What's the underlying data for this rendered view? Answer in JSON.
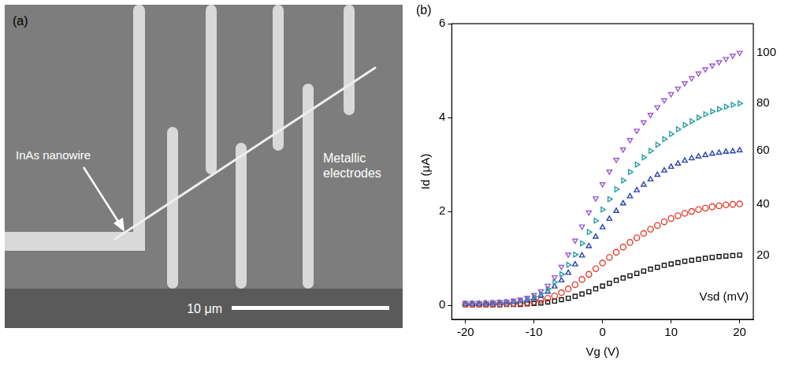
{
  "chart_data": {
    "type": "scatter",
    "panel_label": "(b)",
    "x_label": "Vg (V)",
    "y_label": "Id (μA)",
    "legend_title": "Vsd (mV)",
    "x": [
      -20,
      -19,
      -18,
      -17,
      -16,
      -15,
      -14,
      -13,
      -12,
      -11,
      -10,
      -9,
      -8,
      -7,
      -6,
      -5,
      -4,
      -3,
      -2,
      -1,
      0,
      1,
      2,
      3,
      4,
      5,
      6,
      7,
      8,
      9,
      10,
      11,
      12,
      13,
      14,
      15,
      16,
      17,
      18,
      19,
      20
    ],
    "series": [
      {
        "name": "100",
        "color": "#9a5cd0",
        "marker": "triangle_down",
        "values": [
          0.05,
          0.05,
          0.05,
          0.05,
          0.06,
          0.07,
          0.08,
          0.1,
          0.12,
          0.16,
          0.22,
          0.3,
          0.42,
          0.6,
          0.82,
          1.08,
          1.38,
          1.68,
          1.98,
          2.28,
          2.58,
          2.85,
          3.1,
          3.32,
          3.52,
          3.72,
          3.9,
          4.06,
          4.22,
          4.37,
          4.5,
          4.62,
          4.73,
          4.84,
          4.94,
          5.03,
          5.11,
          5.18,
          5.25,
          5.32,
          5.38
        ]
      },
      {
        "name": "80",
        "color": "#2a9fa3",
        "marker": "triangle_right",
        "values": [
          0.04,
          0.04,
          0.04,
          0.05,
          0.05,
          0.06,
          0.07,
          0.08,
          0.1,
          0.13,
          0.18,
          0.25,
          0.35,
          0.49,
          0.66,
          0.86,
          1.08,
          1.32,
          1.56,
          1.8,
          2.04,
          2.26,
          2.47,
          2.66,
          2.84,
          3.0,
          3.15,
          3.29,
          3.42,
          3.54,
          3.65,
          3.75,
          3.84,
          3.92,
          4.0,
          4.07,
          4.13,
          4.18,
          4.23,
          4.27,
          4.3
        ]
      },
      {
        "name": "60",
        "color": "#2b44b0",
        "marker": "triangle_up",
        "values": [
          0.03,
          0.03,
          0.03,
          0.04,
          0.04,
          0.05,
          0.06,
          0.07,
          0.09,
          0.11,
          0.15,
          0.21,
          0.29,
          0.4,
          0.53,
          0.69,
          0.87,
          1.06,
          1.26,
          1.46,
          1.66,
          1.84,
          2.01,
          2.17,
          2.32,
          2.45,
          2.57,
          2.68,
          2.78,
          2.87,
          2.95,
          3.02,
          3.08,
          3.13,
          3.17,
          3.2,
          3.23,
          3.25,
          3.27,
          3.28,
          3.3
        ]
      },
      {
        "name": "40",
        "color": "#e0402e",
        "marker": "circle",
        "values": [
          0.02,
          0.02,
          0.02,
          0.02,
          0.03,
          0.03,
          0.04,
          0.04,
          0.05,
          0.06,
          0.08,
          0.11,
          0.15,
          0.2,
          0.27,
          0.35,
          0.44,
          0.55,
          0.66,
          0.78,
          0.9,
          1.02,
          1.13,
          1.24,
          1.34,
          1.44,
          1.53,
          1.62,
          1.7,
          1.78,
          1.85,
          1.91,
          1.96,
          2.0,
          2.04,
          2.07,
          2.1,
          2.12,
          2.14,
          2.15,
          2.16
        ]
      },
      {
        "name": "20",
        "color": "#111111",
        "marker": "square",
        "values": [
          0.01,
          0.01,
          0.01,
          0.01,
          0.01,
          0.01,
          0.02,
          0.02,
          0.02,
          0.03,
          0.04,
          0.05,
          0.07,
          0.09,
          0.12,
          0.15,
          0.19,
          0.24,
          0.29,
          0.35,
          0.41,
          0.47,
          0.53,
          0.58,
          0.63,
          0.68,
          0.73,
          0.77,
          0.81,
          0.85,
          0.88,
          0.91,
          0.94,
          0.96,
          0.98,
          1.0,
          1.02,
          1.04,
          1.05,
          1.06,
          1.07
        ]
      }
    ],
    "xlim": [
      -22,
      22
    ],
    "xticks": [
      -20,
      -10,
      0,
      10,
      20
    ],
    "ylim": [
      -0.3,
      6
    ],
    "yticks": [
      0,
      2,
      4,
      6
    ],
    "grid": false
  },
  "image_panel": {
    "label": "(a)",
    "annotations": [
      "InAs nanowire",
      "Metallic electrodes"
    ],
    "scale_bar": "10 μm"
  }
}
